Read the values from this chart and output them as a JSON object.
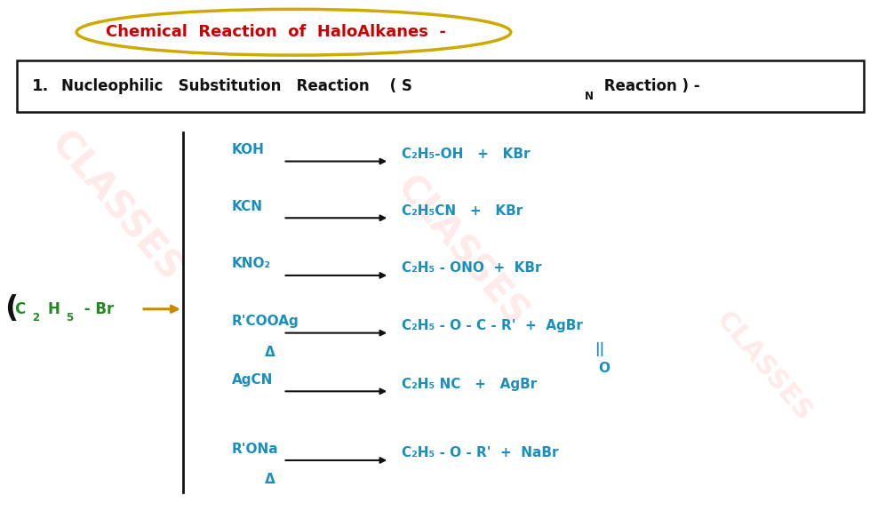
{
  "title": "Chemical  Reaction  of  HaloAlkanes  -",
  "title_color": "#cc0000",
  "title_ellipse_color": "#ccaa00",
  "bg_color": "#ffffff",
  "text_color_cyan": "#1a8fbf",
  "text_color_black": "#111111",
  "text_color_green": "#228822",
  "arrow_color": "#cc8800",
  "reactions": [
    {
      "reagent": "KOH",
      "product": "C₂H₅-OH   +   KBr",
      "has_delta": false
    },
    {
      "reagent": "KCN",
      "product": "C₂H₅CN   +   KBr",
      "has_delta": false
    },
    {
      "reagent": "KNO₂",
      "product": "C₂H₅ - ONO  +  KBr",
      "has_delta": false
    },
    {
      "reagent": "R'COOAg",
      "product": "C₂H₅ - O - C - R'  +  AgBr",
      "has_delta": true
    },
    {
      "reagent": "AgCN",
      "product": "C₂H₅ NC   +   AgBr",
      "has_delta": false
    },
    {
      "reagent": "R'ONa",
      "product": "C₂H₅ - O - R'  +  NaBr",
      "has_delta": true
    }
  ]
}
